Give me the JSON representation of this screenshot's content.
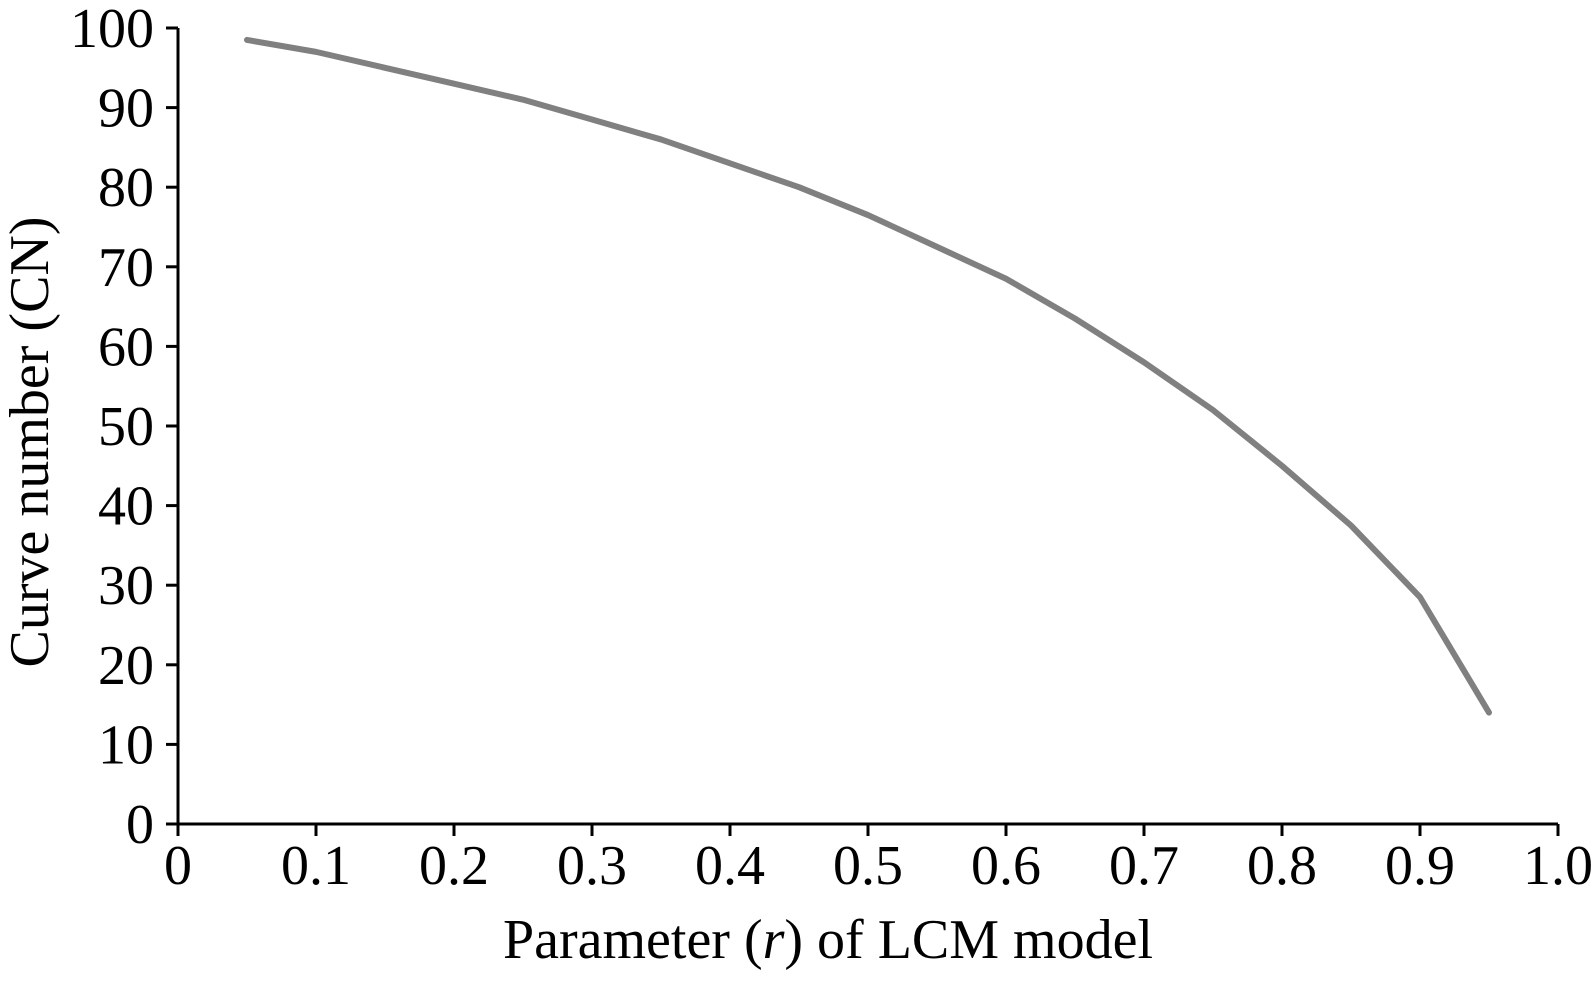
{
  "chart_data": {
    "type": "line",
    "title": "",
    "xlabel_parts": [
      "Parameter (",
      "r",
      ") of LCM model"
    ],
    "ylabel": "Curve number (CN)",
    "xlim": [
      0,
      1.0
    ],
    "ylim": [
      0,
      100
    ],
    "x_ticks": [
      "0",
      "0.1",
      "0.2",
      "0.3",
      "0.4",
      "0.5",
      "0.6",
      "0.7",
      "0.8",
      "0.9",
      "1.0"
    ],
    "y_ticks": [
      "0",
      "10",
      "20",
      "30",
      "40",
      "50",
      "60",
      "70",
      "80",
      "90",
      "100"
    ],
    "grid": false,
    "legend": "none",
    "series": [
      {
        "color": "#808080",
        "x": [
          0.05,
          0.1,
          0.15,
          0.2,
          0.25,
          0.3,
          0.35,
          0.4,
          0.45,
          0.5,
          0.55,
          0.6,
          0.65,
          0.7,
          0.75,
          0.8,
          0.85,
          0.9,
          0.95
        ],
        "y": [
          98.5,
          97.0,
          95.0,
          93.0,
          91.0,
          88.5,
          86.0,
          83.0,
          80.0,
          76.5,
          72.5,
          68.5,
          63.5,
          58.0,
          52.0,
          45.0,
          37.5,
          28.5,
          14.0
        ]
      }
    ]
  }
}
